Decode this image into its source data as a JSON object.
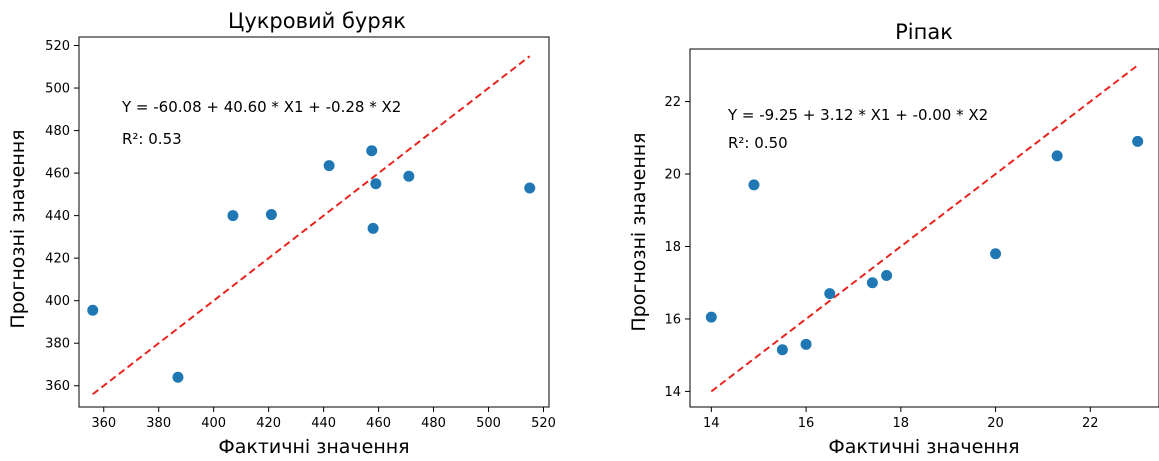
{
  "chart_data": [
    {
      "type": "scatter",
      "title": "Цукровий буряк",
      "xlabel": "Фактичні значення",
      "ylabel": "Прогнозні значення",
      "xlim": [
        351,
        522
      ],
      "ylim": [
        350,
        524
      ],
      "xticks": [
        360,
        380,
        400,
        420,
        440,
        460,
        480,
        500,
        520
      ],
      "yticks": [
        360,
        380,
        400,
        420,
        440,
        460,
        480,
        500,
        520
      ],
      "points": [
        {
          "x": 356,
          "y": 395.5
        },
        {
          "x": 387,
          "y": 364
        },
        {
          "x": 407,
          "y": 440
        },
        {
          "x": 421,
          "y": 440.5
        },
        {
          "x": 442,
          "y": 463.5
        },
        {
          "x": 457.5,
          "y": 470.5
        },
        {
          "x": 459,
          "y": 455
        },
        {
          "x": 458,
          "y": 434
        },
        {
          "x": 471,
          "y": 458.5
        },
        {
          "x": 515,
          "y": 453
        }
      ],
      "reference_line": {
        "x": [
          356,
          515
        ],
        "y": [
          356,
          515
        ],
        "color": "#e8251f",
        "style": "dashed"
      },
      "annotations": [
        "Y = -60.08 + 40.60 * X1 + -0.28 * X2",
        "R²: 0.53"
      ],
      "grid": false
    },
    {
      "type": "scatter",
      "title": "Ріпак",
      "xlabel": "Фактичні значення",
      "ylabel": "Прогнозні значення",
      "xlim": [
        13.55,
        23.45
      ],
      "ylim": [
        13.57,
        23.45
      ],
      "xticks": [
        14,
        16,
        18,
        20,
        22
      ],
      "yticks": [
        14,
        16,
        18,
        20,
        22
      ],
      "points": [
        {
          "x": 14.0,
          "y": 16.05
        },
        {
          "x": 14.9,
          "y": 19.7
        },
        {
          "x": 15.5,
          "y": 15.15
        },
        {
          "x": 16.0,
          "y": 15.3
        },
        {
          "x": 16.5,
          "y": 16.7
        },
        {
          "x": 17.4,
          "y": 17.0
        },
        {
          "x": 17.7,
          "y": 17.2
        },
        {
          "x": 20.0,
          "y": 17.8
        },
        {
          "x": 21.3,
          "y": 20.5
        },
        {
          "x": 23.0,
          "y": 20.9
        }
      ],
      "reference_line": {
        "x": [
          14,
          23
        ],
        "y": [
          14,
          23
        ],
        "color": "#e8251f",
        "style": "dashed"
      },
      "annotations": [
        "Y = -9.25 + 3.12 * X1 + -0.00 * X2",
        "R²: 0.50"
      ],
      "grid": false
    }
  ],
  "colors": {
    "points": "#1f77b4",
    "fit_line": "#e8251f"
  }
}
